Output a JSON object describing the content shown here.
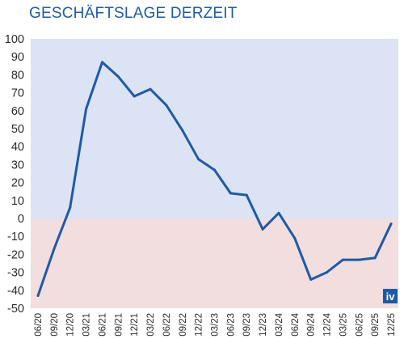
{
  "chart_data": {
    "type": "line",
    "title": "GESCHÄFTSLAGE DERZEIT",
    "xlabel": "",
    "ylabel": "",
    "ylim": [
      -50,
      100
    ],
    "yticks": [
      100,
      90,
      80,
      70,
      60,
      50,
      40,
      30,
      20,
      10,
      0,
      -10,
      -20,
      -30,
      -40,
      -50
    ],
    "x_tick_labels": [
      "06/20",
      "09/20",
      "12/20",
      "03/21",
      "06/21",
      "09/21",
      "12/21",
      "03/22",
      "06/22",
      "09/22",
      "12/22",
      "03/23",
      "06/23",
      "09/23",
      "12/23",
      "03/24",
      "06/24",
      "09/24",
      "12/24",
      "03/25",
      "06/25",
      "09/25",
      "12/25"
    ],
    "series": [
      {
        "values": [
          -43,
          -17,
          6,
          61,
          87,
          79,
          68,
          72,
          63,
          49,
          33,
          27,
          14,
          13,
          -6,
          3,
          -11,
          -34,
          -30,
          -23,
          -23,
          -22,
          -3
        ]
      }
    ],
    "colors": {
      "line": "#1f5aa6",
      "positive_area": "#dbe3f4",
      "negative_area": "#f2dede",
      "logo": "#1f5aa6"
    },
    "logo_text": "iv"
  }
}
